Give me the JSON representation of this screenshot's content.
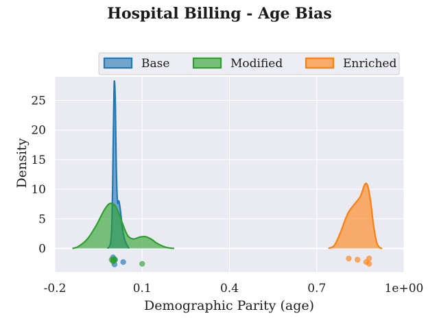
{
  "chart_data": {
    "type": "area",
    "title": "Hospital Billing - Age Bias",
    "xlabel": "Demographic Parity (age)",
    "ylabel": "Density",
    "xlim": [
      -0.2,
      1.0
    ],
    "ylim": [
      -4,
      29
    ],
    "x_ticks": [
      -0.2,
      0.1,
      0.4,
      0.7,
      1.0
    ],
    "x_tick_labels": [
      "-0.2",
      "0.1",
      "0.4",
      "0.7",
      "1e+00"
    ],
    "y_ticks": [
      0,
      5,
      10,
      15,
      20,
      25
    ],
    "y_tick_labels": [
      "0",
      "5",
      "10",
      "15",
      "20",
      "25"
    ],
    "grid": true,
    "legend_position": "top",
    "series": [
      {
        "name": "Base",
        "color": "#1f77b4",
        "density": [
          [
            -0.02,
            0
          ],
          [
            -0.01,
            0.6
          ],
          [
            -0.005,
            3
          ],
          [
            -0.002,
            9
          ],
          [
            0.0,
            16
          ],
          [
            0.003,
            26
          ],
          [
            0.005,
            28.2
          ],
          [
            0.008,
            24
          ],
          [
            0.011,
            14
          ],
          [
            0.015,
            8
          ],
          [
            0.02,
            8
          ],
          [
            0.025,
            6.5
          ],
          [
            0.032,
            3.5
          ],
          [
            0.04,
            1.5
          ],
          [
            0.05,
            0.4
          ],
          [
            0.055,
            0
          ]
        ],
        "points": [
          [
            0.0,
            -1.5
          ],
          [
            0.002,
            -2.0
          ],
          [
            0.005,
            -2.7
          ],
          [
            0.007,
            -1.9
          ],
          [
            0.035,
            -2.3
          ]
        ]
      },
      {
        "name": "Modified",
        "color": "#2ca02c",
        "density": [
          [
            -0.14,
            0
          ],
          [
            -0.12,
            0.3
          ],
          [
            -0.09,
            1.5
          ],
          [
            -0.06,
            3.7
          ],
          [
            -0.03,
            6.5
          ],
          [
            -0.01,
            7.6
          ],
          [
            0.01,
            7.0
          ],
          [
            0.03,
            4.5
          ],
          [
            0.05,
            2.2
          ],
          [
            0.07,
            1.6
          ],
          [
            0.09,
            1.9
          ],
          [
            0.11,
            2.0
          ],
          [
            0.13,
            1.6
          ],
          [
            0.15,
            0.9
          ],
          [
            0.17,
            0.4
          ],
          [
            0.19,
            0.1
          ],
          [
            0.21,
            0
          ]
        ],
        "points": [
          [
            -0.005,
            -1.9
          ],
          [
            0.0,
            -2.0
          ],
          [
            0.005,
            -1.9
          ],
          [
            0.0,
            -2.2
          ],
          [
            0.003,
            -1.8
          ],
          [
            0.1,
            -2.6
          ]
        ]
      },
      {
        "name": "Enriched",
        "color": "#ff7f0e",
        "density": [
          [
            0.74,
            0
          ],
          [
            0.76,
            0.5
          ],
          [
            0.78,
            2.5
          ],
          [
            0.795,
            4.5
          ],
          [
            0.81,
            6.2
          ],
          [
            0.83,
            7.5
          ],
          [
            0.85,
            8.8
          ],
          [
            0.865,
            10.8
          ],
          [
            0.875,
            10.6
          ],
          [
            0.885,
            8.0
          ],
          [
            0.895,
            4.0
          ],
          [
            0.905,
            1.2
          ],
          [
            0.915,
            0.2
          ],
          [
            0.925,
            0
          ]
        ],
        "points": [
          [
            0.81,
            -1.7
          ],
          [
            0.84,
            -1.9
          ],
          [
            0.87,
            -2.3
          ],
          [
            0.88,
            -1.7
          ],
          [
            0.88,
            -2.6
          ]
        ]
      }
    ]
  }
}
